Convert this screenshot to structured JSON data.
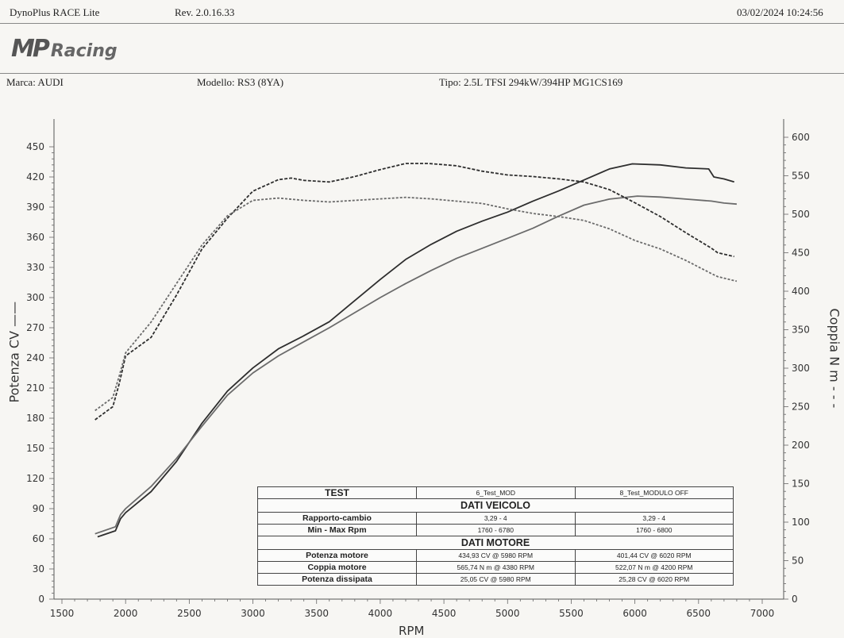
{
  "header": {
    "app": "DynoPlus RACE Lite",
    "rev": "Rev. 2.0.16.33",
    "datetime": "03/02/2024  10:24:56"
  },
  "logo": {
    "mp": "MP",
    "racing": "Racing"
  },
  "vehicle": {
    "marca": "Marca: AUDI",
    "modello": "Modello: RS3 (8YA)",
    "tipo": "Tipo: 2.5L TFSI 294kW/394HP MG1CS169"
  },
  "chart_data": {
    "type": "line",
    "xlabel": "RPM",
    "ylabel_left": "Potenza CV ——",
    "ylabel_right": "Coppia N m - - -",
    "xlim": [
      1500,
      7000
    ],
    "ylim_left": [
      0,
      450
    ],
    "ylim_right": [
      0,
      600
    ],
    "x_ticks": [
      1500,
      2000,
      2500,
      3000,
      3500,
      4000,
      4500,
      5000,
      5500,
      6000,
      6500,
      7000
    ],
    "y_left_ticks": [
      0,
      30,
      60,
      90,
      120,
      150,
      180,
      210,
      240,
      270,
      300,
      330,
      360,
      390,
      420,
      450
    ],
    "y_right_ticks": [
      0,
      50,
      100,
      150,
      200,
      250,
      300,
      350,
      400,
      450,
      500,
      550,
      600
    ],
    "grid": false,
    "series": [
      {
        "name": "6_Test_MOD",
        "measure": "power",
        "axis": "left",
        "color": "#2e2e2e",
        "dash": "solid",
        "x": [
          1780,
          1920,
          1960,
          2000,
          2200,
          2400,
          2600,
          2800,
          3000,
          3200,
          3400,
          3600,
          3800,
          4000,
          4200,
          4400,
          4600,
          4800,
          5000,
          5200,
          5400,
          5600,
          5800,
          5980,
          6200,
          6400,
          6580,
          6620,
          6700,
          6780
        ],
        "y": [
          62,
          68,
          80,
          86,
          107,
          137,
          175,
          207,
          230,
          249,
          262,
          276,
          297,
          318,
          338,
          353,
          366,
          376,
          385,
          396,
          406,
          417,
          428,
          433,
          432,
          429,
          428,
          420,
          418,
          415
        ]
      },
      {
        "name": "8_Test_MODULO OFF",
        "measure": "power",
        "axis": "left",
        "color": "#6b6b6b",
        "dash": "solid",
        "x": [
          1760,
          1920,
          1960,
          2000,
          2200,
          2400,
          2600,
          2800,
          3000,
          3200,
          3400,
          3600,
          3800,
          4000,
          4200,
          4400,
          4600,
          4800,
          5000,
          5200,
          5400,
          5600,
          5800,
          6020,
          6200,
          6400,
          6600,
          6700,
          6800
        ],
        "y": [
          65,
          72,
          84,
          90,
          112,
          140,
          172,
          203,
          225,
          242,
          256,
          270,
          285,
          300,
          314,
          327,
          339,
          349,
          359,
          369,
          381,
          392,
          398,
          401,
          400,
          398,
          396,
          394,
          393
        ]
      },
      {
        "name": "6_Test_MOD",
        "measure": "torque",
        "axis": "right",
        "color": "#2e2e2e",
        "dash": "4 2",
        "x": [
          1760,
          1900,
          1950,
          2000,
          2200,
          2400,
          2600,
          2800,
          3000,
          3200,
          3300,
          3400,
          3600,
          3800,
          4000,
          4200,
          4380,
          4600,
          4800,
          5000,
          5200,
          5400,
          5600,
          5800,
          6000,
          6200,
          6400,
          6600,
          6650,
          6780
        ],
        "y": [
          233,
          250,
          280,
          316,
          340,
          395,
          455,
          495,
          530,
          545,
          547,
          544,
          542,
          549,
          558,
          566,
          566,
          563,
          556,
          551,
          549,
          546,
          542,
          532,
          515,
          497,
          476,
          456,
          450,
          445
        ]
      },
      {
        "name": "8_Test_MODULO OFF",
        "measure": "torque",
        "axis": "right",
        "color": "#6b6b6b",
        "dash": "3 2",
        "x": [
          1760,
          1900,
          1950,
          2000,
          2200,
          2400,
          2600,
          2800,
          3000,
          3200,
          3400,
          3600,
          3800,
          4000,
          4200,
          4400,
          4600,
          4800,
          5000,
          5200,
          5400,
          5600,
          5800,
          6000,
          6200,
          6400,
          6600,
          6650,
          6800
        ],
        "y": [
          245,
          262,
          290,
          320,
          360,
          410,
          460,
          498,
          518,
          521,
          518,
          516,
          518,
          520,
          522,
          520,
          517,
          514,
          507,
          501,
          497,
          492,
          481,
          466,
          455,
          440,
          423,
          419,
          413
        ]
      }
    ]
  },
  "results_table": {
    "test_label": "TEST",
    "test_cols": [
      "6_Test_MOD",
      "8_Test_MODULO OFF"
    ],
    "section_vehicle": "DATI VEICOLO",
    "rows_vehicle": [
      {
        "label": "Rapporto-cambio",
        "v1": "3,29 - 4",
        "v2": "3,29 - 4"
      },
      {
        "label": "Min - Max Rpm",
        "v1": "1760 - 6780",
        "v2": "1760 - 6800"
      }
    ],
    "section_engine": "DATI MOTORE",
    "rows_engine": [
      {
        "label": "Potenza motore",
        "v1": "434,93 CV @ 5980 RPM",
        "v2": "401,44 CV @ 6020 RPM"
      },
      {
        "label": "Coppia motore",
        "v1": "565,74 N m @ 4380 RPM",
        "v2": "522,07 N m @ 4200 RPM"
      },
      {
        "label": "Potenza dissipata",
        "v1": "25,05 CV @ 5980 RPM",
        "v2": "25,28 CV @ 6020 RPM"
      }
    ]
  }
}
